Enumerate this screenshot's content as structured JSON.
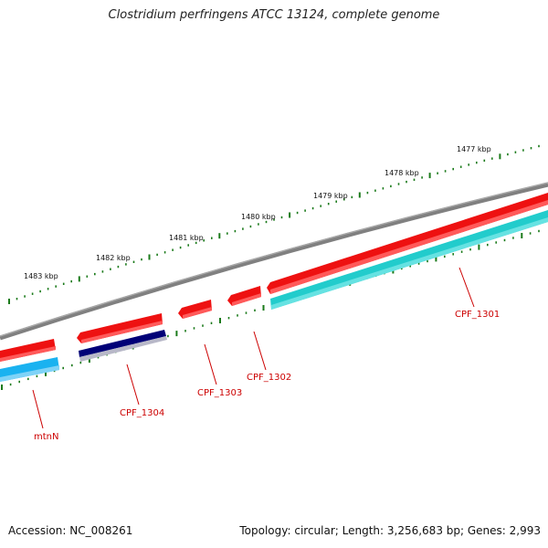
{
  "title": "Clostridium perfringens ATCC 13124, complete genome",
  "footer": {
    "accession": "Accession: NC_008261",
    "topology": "Topology: circular; Length: 3,256,683 bp; Genes: 2,993"
  },
  "colors": {
    "backbone": "#808080",
    "gene_red": "#ee1111",
    "gene_navy": "#000077",
    "gene_cyan": "#22cccc",
    "gene_blue": "#1ab2f0",
    "tick": "#1a7a1a",
    "label": "#cc0000"
  },
  "kbp_labels": [
    "1477 kbp",
    "1478 kbp",
    "1479 kbp",
    "1480 kbp",
    "1481 kbp",
    "1482 kbp",
    "1483 kbp"
  ],
  "gene_labels": {
    "cpf1301": "CPF_1301",
    "cpf1302": "CPF_1302",
    "cpf1303": "CPF_1303",
    "cpf1304": "CPF_1304",
    "mtnN": "mtnN"
  }
}
